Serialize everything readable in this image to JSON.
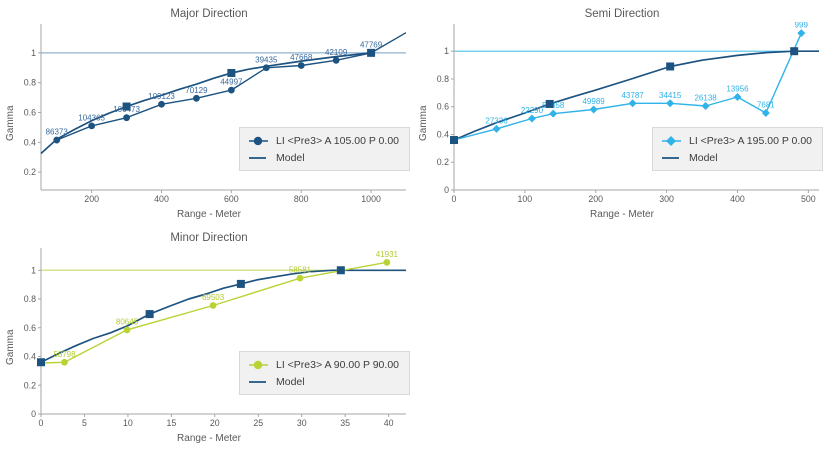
{
  "chart_data": [
    {
      "type": "line",
      "title": "Major Direction",
      "xlabel": "Range - Meter",
      "ylabel": "Gamma",
      "x_range": [
        55,
        1100
      ],
      "y_range": [
        0.08,
        1.16
      ],
      "x_ticks": [
        200,
        400,
        600,
        800,
        1000
      ],
      "y_ticks": [
        0.2,
        0.4,
        0.6,
        0.8,
        1
      ],
      "grid": "off",
      "legend_position": "right-center",
      "sill_line": {
        "y": 1,
        "color": "#8FB2CF"
      },
      "model": {
        "label": "Model",
        "color": "#1D5380",
        "curve": [
          [
            55,
            0.325
          ],
          [
            100,
            0.42
          ],
          [
            150,
            0.485
          ],
          [
            200,
            0.545
          ],
          [
            250,
            0.595
          ],
          [
            300,
            0.64
          ],
          [
            350,
            0.68
          ],
          [
            400,
            0.715
          ],
          [
            450,
            0.755
          ],
          [
            500,
            0.79
          ],
          [
            550,
            0.83
          ],
          [
            600,
            0.865
          ],
          [
            650,
            0.89
          ],
          [
            700,
            0.91
          ],
          [
            800,
            0.945
          ],
          [
            900,
            0.975
          ],
          [
            1000,
            1.0
          ]
        ],
        "handles": [
          [
            300,
            0.64
          ],
          [
            600,
            0.865
          ],
          [
            1000,
            1.0
          ]
        ]
      },
      "series": {
        "label": "LI <Pre3> A 105.00 P 0.00",
        "color": "#1D5380",
        "label_color": "#38699E",
        "marker": "circle",
        "lead": null,
        "tail": [
          1100,
          1.135
        ],
        "points": [
          {
            "x": 100,
            "y": 0.415,
            "label": "86373"
          },
          {
            "x": 200,
            "y": 0.51,
            "label": "104365"
          },
          {
            "x": 300,
            "y": 0.565,
            "label": "106473"
          },
          {
            "x": 400,
            "y": 0.655,
            "label": "109123"
          },
          {
            "x": 500,
            "y": 0.695,
            "label": "70129"
          },
          {
            "x": 600,
            "y": 0.75,
            "label": "44997"
          },
          {
            "x": 700,
            "y": 0.9,
            "label": "39435"
          },
          {
            "x": 800,
            "y": 0.915,
            "label": "47668"
          },
          {
            "x": 900,
            "y": 0.95,
            "label": "42109"
          },
          {
            "x": 1000,
            "y": 1.0,
            "label": "47769"
          }
        ]
      }
    },
    {
      "type": "line",
      "title": "Semi Direction",
      "xlabel": "Range - Meter",
      "ylabel": "Gamma",
      "x_range": [
        0,
        515
      ],
      "y_range": [
        0,
        1.16
      ],
      "x_ticks": [
        0,
        100,
        200,
        300,
        400,
        500
      ],
      "y_ticks": [
        0,
        0.2,
        0.4,
        0.6,
        0.8,
        1
      ],
      "grid": "off",
      "legend_position": "right-center",
      "sill_line": {
        "y": 1,
        "color": "#4FC1EC"
      },
      "model": {
        "label": "Model",
        "color": "#1D5380",
        "curve": [
          [
            0,
            0.36
          ],
          [
            30,
            0.425
          ],
          [
            60,
            0.485
          ],
          [
            100,
            0.555
          ],
          [
            135,
            0.62
          ],
          [
            170,
            0.675
          ],
          [
            200,
            0.72
          ],
          [
            250,
            0.8
          ],
          [
            305,
            0.89
          ],
          [
            350,
            0.935
          ],
          [
            400,
            0.97
          ],
          [
            440,
            0.99
          ],
          [
            480,
            1.0
          ],
          [
            515,
            1.0
          ]
        ],
        "handles": [
          [
            0,
            0.36
          ],
          [
            135,
            0.62
          ],
          [
            305,
            0.89
          ],
          [
            480,
            1.0
          ]
        ]
      },
      "series": {
        "label": "LI <Pre3> A 195.00 P 0.00",
        "color": "#2FB3E8",
        "label_color": "#2FB3E8",
        "marker": "diamond",
        "lead": [
          0,
          0.36
        ],
        "tail": null,
        "points": [
          {
            "x": 60,
            "y": 0.44,
            "label": "27336"
          },
          {
            "x": 110,
            "y": 0.515,
            "label": "22290"
          },
          {
            "x": 140,
            "y": 0.55,
            "label": "50358"
          },
          {
            "x": 197,
            "y": 0.58,
            "label": "49989"
          },
          {
            "x": 252,
            "y": 0.625,
            "label": "43787"
          },
          {
            "x": 305,
            "y": 0.625,
            "label": "34415"
          },
          {
            "x": 355,
            "y": 0.605,
            "label": "26138"
          },
          {
            "x": 400,
            "y": 0.67,
            "label": "13956"
          },
          {
            "x": 440,
            "y": 0.555,
            "label": "7681"
          },
          {
            "x": 490,
            "y": 1.13,
            "label": "999"
          }
        ]
      }
    },
    {
      "type": "line",
      "title": "Minor Direction",
      "xlabel": "Range - Meter",
      "ylabel": "Gamma",
      "x_range": [
        0,
        42
      ],
      "y_range": [
        0,
        1.12
      ],
      "x_ticks": [
        0,
        5,
        10,
        15,
        20,
        25,
        30,
        35,
        40
      ],
      "y_ticks": [
        0,
        0.2,
        0.4,
        0.6,
        0.8,
        1
      ],
      "grid": "off",
      "legend_position": "right-center",
      "sill_line": {
        "y": 1,
        "color": "#CCDC77"
      },
      "model": {
        "label": "Model",
        "color": "#1D5380",
        "curve": [
          [
            0,
            0.36
          ],
          [
            2,
            0.42
          ],
          [
            4,
            0.475
          ],
          [
            6,
            0.525
          ],
          [
            8,
            0.565
          ],
          [
            10,
            0.615
          ],
          [
            12.5,
            0.695
          ],
          [
            15,
            0.755
          ],
          [
            17,
            0.8
          ],
          [
            19,
            0.835
          ],
          [
            21,
            0.875
          ],
          [
            23,
            0.905
          ],
          [
            25,
            0.935
          ],
          [
            27,
            0.955
          ],
          [
            29,
            0.975
          ],
          [
            31,
            0.99
          ],
          [
            33.5,
            1.0
          ],
          [
            42,
            1.0
          ]
        ],
        "handles": [
          [
            0,
            0.36
          ],
          [
            12.5,
            0.695
          ],
          [
            23,
            0.905
          ],
          [
            34.5,
            1.0
          ]
        ]
      },
      "series": {
        "label": "LI <Pre3> A 90.00 P 90.00",
        "color": "#B9D335",
        "label_color": "#B2CC2D",
        "marker": "circle",
        "lead": [
          0,
          0.355
        ],
        "tail": null,
        "points": [
          {
            "x": 2.7,
            "y": 0.36,
            "label": "58798"
          },
          {
            "x": 9.9,
            "y": 0.585,
            "label": "80645"
          },
          {
            "x": 19.8,
            "y": 0.755,
            "label": "69503"
          },
          {
            "x": 29.8,
            "y": 0.945,
            "label": "58581"
          },
          {
            "x": 39.8,
            "y": 1.055,
            "label": "41931"
          }
        ]
      }
    }
  ],
  "axis_style": {
    "axis_color": "#A6A6A6",
    "text_color": "#595959"
  }
}
